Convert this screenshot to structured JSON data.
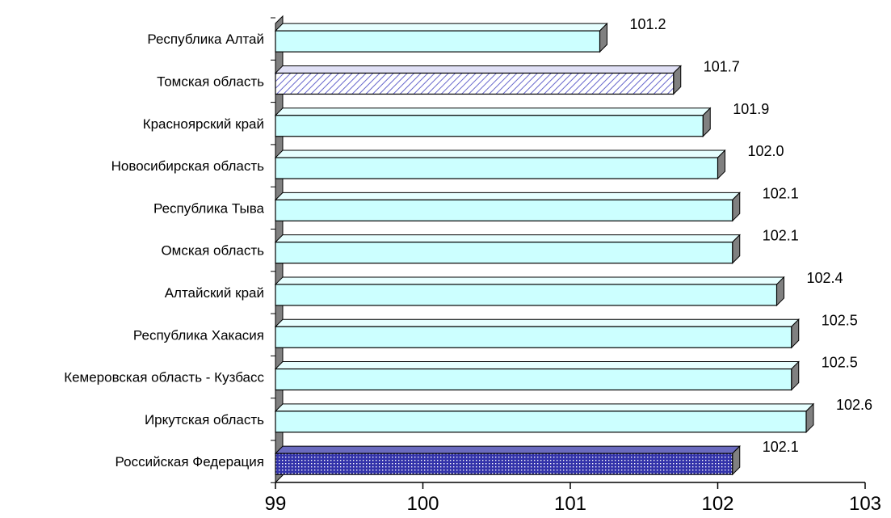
{
  "chart_data": {
    "type": "bar",
    "orientation": "horizontal",
    "categories": [
      "Республика Алтай",
      "Томская область",
      "Красноярский край",
      "Новосибирская область",
      "Республика Тыва",
      "Омская область",
      "Алтайский край",
      "Республика Хакасия",
      "Кемеровская область - Кузбасс",
      "Иркутская область",
      "Российская Федерация"
    ],
    "values": [
      101.2,
      101.7,
      101.9,
      102.0,
      102.1,
      102.1,
      102.4,
      102.5,
      102.5,
      102.6,
      102.1
    ],
    "value_labels": [
      "101.2",
      "101.7",
      "101.9",
      "102.0",
      "102.1",
      "102.1",
      "102.4",
      "102.5",
      "102.5",
      "102.6",
      "102.1"
    ],
    "bar_styles": [
      "plain",
      "hatched",
      "plain",
      "plain",
      "plain",
      "plain",
      "plain",
      "plain",
      "plain",
      "plain",
      "dotted"
    ],
    "xlim": [
      99,
      103
    ],
    "xticks": [
      "99",
      "100",
      "101",
      "102",
      "103"
    ],
    "title": "",
    "xlabel": "",
    "ylabel": "",
    "grid": false,
    "colors": {
      "plain_fill": "#ccffff",
      "hatched_fill": "#ffffff",
      "hatched_stroke": "#6666cc",
      "dotted_fill": "#3333aa",
      "dotted_dot": "#ffffff",
      "side_face": "#808080",
      "bar_outline": "#000000"
    }
  }
}
